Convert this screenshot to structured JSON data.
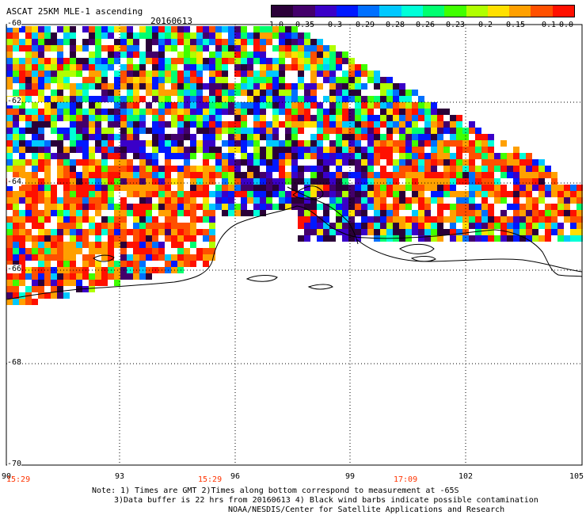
{
  "header": {
    "title": "ASCAT 25KM MLE-1 ascending",
    "date": "20160613"
  },
  "colorbar": {
    "labels": [
      "-1.0",
      "-0.35",
      "-0.3",
      "-0.29",
      "-0.28",
      "-0.26",
      "-0.23",
      "-0.2",
      "-0.15",
      "-0.1",
      "0.0"
    ],
    "colors": [
      "#2a0038",
      "#43006b",
      "#3a00c8",
      "#0018ff",
      "#0070ff",
      "#00c8ff",
      "#00ffd8",
      "#00ff70",
      "#40ff00",
      "#b0ff00",
      "#ffe000",
      "#ffa000",
      "#ff5000",
      "#ff1000"
    ]
  },
  "axes": {
    "lat_labels": [
      "-60",
      "-62",
      "-64",
      "-66",
      "-68",
      "-70"
    ],
    "lon_labels": [
      "90",
      "93",
      "96",
      "99",
      "102",
      "105"
    ],
    "times": [
      "15:29",
      "15:29",
      "17:09"
    ]
  },
  "notes": [
    "Note: 1) Times are GMT 2)Times along bottom correspond to measurement at -65S",
    "3)Data buffer is 22 hrs from 20160613 4) Black wind barbs indicate possible contamination",
    "NOAA/NESDIS/Center for Satellite Applications and Research"
  ]
}
